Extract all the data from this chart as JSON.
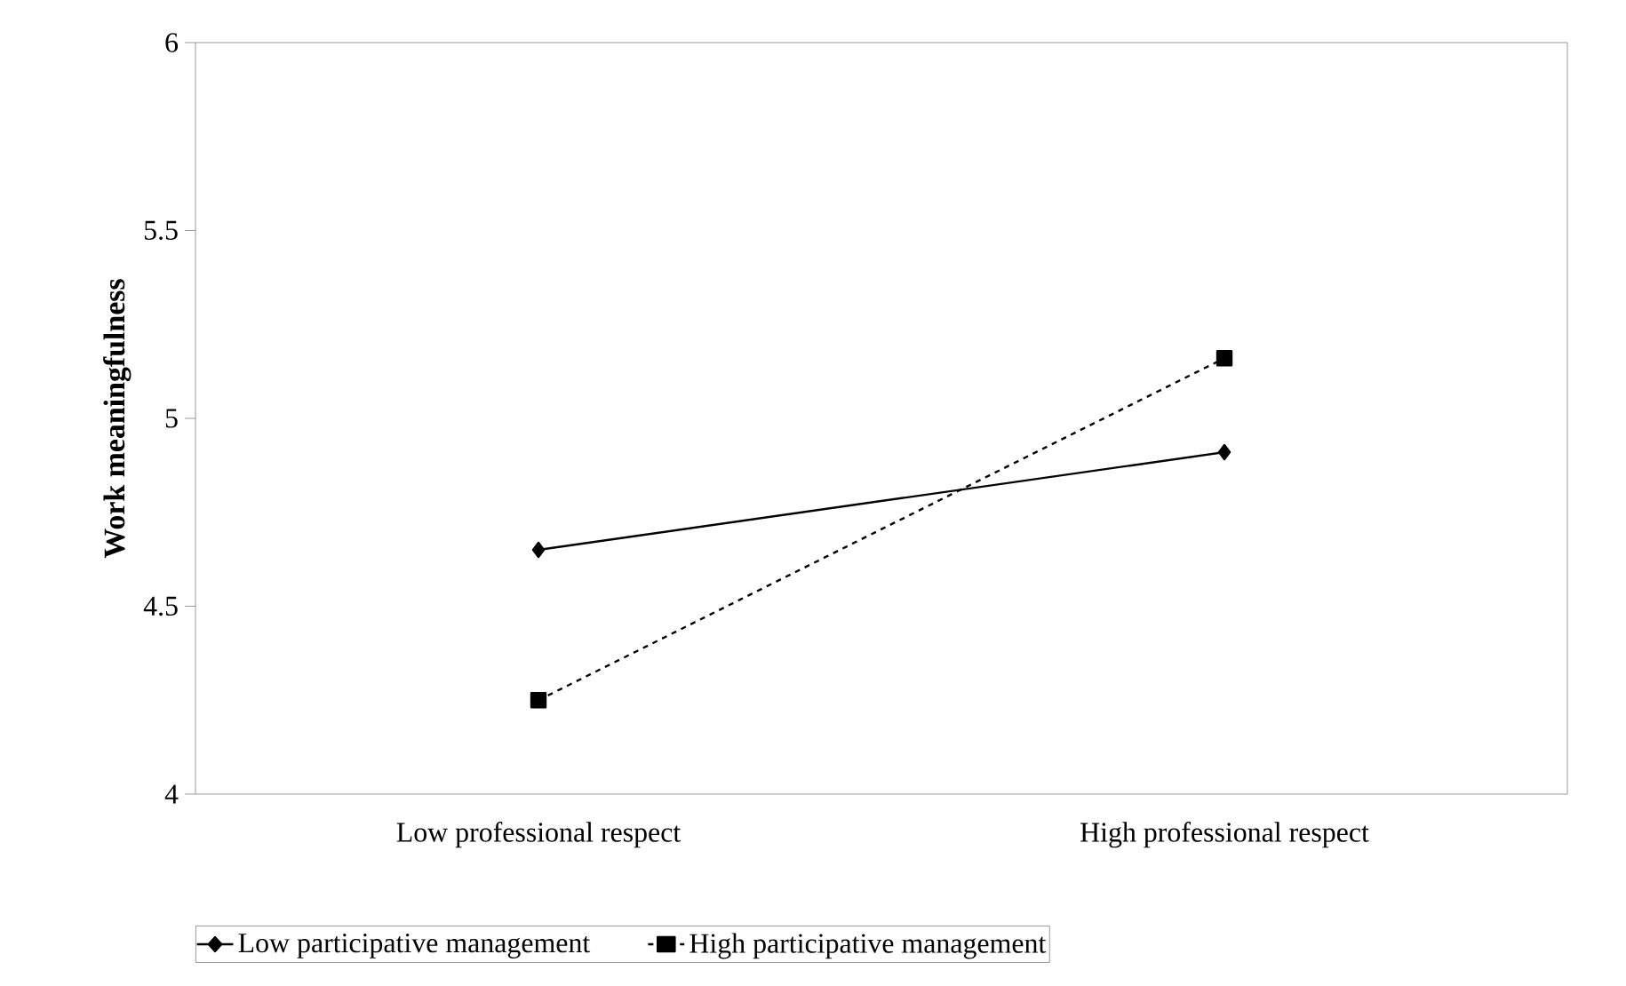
{
  "chart_data": {
    "type": "line",
    "ylabel": "Work meaningfulness",
    "categories": [
      "Low professional respect",
      "High professional respect"
    ],
    "series": [
      {
        "name": "Low participative management",
        "color": "#000000",
        "values": [
          4.65,
          4.91
        ],
        "marker": "diamond",
        "line_style": "solid"
      },
      {
        "name": "High participative management",
        "color": "#000000",
        "values": [
          4.25,
          5.16
        ],
        "marker": "square",
        "line_style": "dashed"
      }
    ],
    "ylim": [
      4,
      6
    ],
    "yticks": [
      4,
      4.5,
      5,
      5.5,
      6
    ],
    "grid": false,
    "legend": "bottom"
  }
}
